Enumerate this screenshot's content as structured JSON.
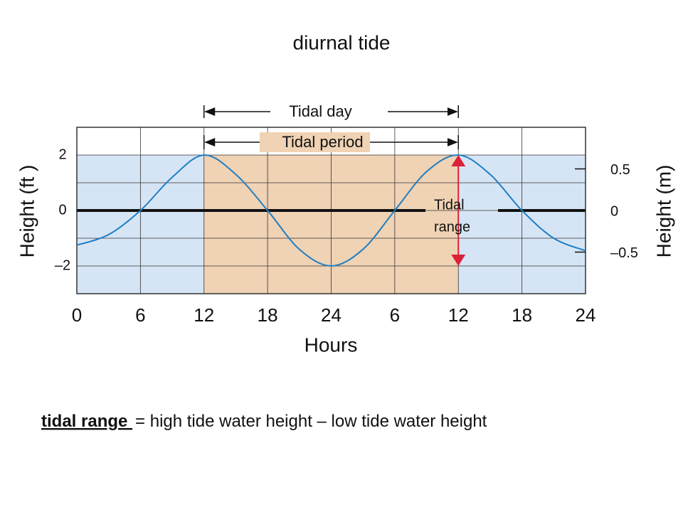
{
  "chart_data": {
    "type": "line",
    "title": "diurnal tide",
    "x_label": "Hours",
    "y_label": "Height (ft )",
    "y2_label": "Height (m)",
    "x": [
      0,
      3,
      6,
      9,
      12,
      15,
      18,
      21,
      24,
      27,
      30,
      33,
      36,
      39,
      42,
      45,
      48
    ],
    "series": [
      {
        "name": "Tide height",
        "color": "#1f7fc4",
        "values": [
          -1.25,
          -0.87,
          0,
          1.2,
          2,
          1.3,
          0,
          -1.4,
          -2,
          -1.4,
          0,
          1.4,
          2,
          1.3,
          0,
          -1.0,
          -1.45
        ]
      }
    ],
    "xlim": [
      0,
      48
    ],
    "xticks": [
      0,
      6,
      12,
      18,
      24,
      {
        "value": 30,
        "label": "6"
      },
      {
        "value": 36,
        "label": "12"
      },
      {
        "value": 42,
        "label": "18"
      },
      {
        "value": 48,
        "label": "24"
      }
    ],
    "ylim": [
      -3,
      3
    ],
    "yticks": [
      {
        "value": -2,
        "label": "–2"
      },
      0,
      2
    ],
    "grid_y": [
      -2,
      -1,
      0,
      1,
      2
    ],
    "y2lim": [
      -1,
      1
    ],
    "y2ticks": [
      {
        "value": -0.5,
        "label": "–0.5"
      },
      0,
      0.5
    ],
    "grid": true,
    "highlight": {
      "from": 12,
      "to": 36,
      "color": "#f0d2b4"
    },
    "background_color": "#d6e5f5",
    "annotations": {
      "tidal_day": "Tidal day",
      "tidal_period": "Tidal period",
      "tidal_range": [
        "Tidal",
        "range"
      ]
    }
  },
  "footer": {
    "term": "tidal range ",
    "definition": "= high tide water height – low tide water height"
  }
}
